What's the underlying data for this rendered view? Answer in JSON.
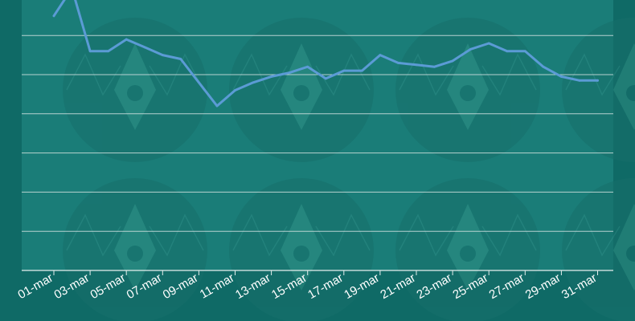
{
  "chart_data": {
    "type": "line",
    "title": "",
    "xlabel": "",
    "ylabel": "",
    "grid": true,
    "legend": "none",
    "x": [
      "01-mar",
      "02-mar",
      "03-mar",
      "04-mar",
      "05-mar",
      "06-mar",
      "07-mar",
      "08-mar",
      "09-mar",
      "10-mar",
      "11-mar",
      "12-mar",
      "13-mar",
      "14-mar",
      "15-mar",
      "16-mar",
      "17-mar",
      "18-mar",
      "19-mar",
      "20-mar",
      "21-mar",
      "22-mar",
      "23-mar",
      "24-mar",
      "25-mar",
      "26-mar",
      "27-mar",
      "28-mar",
      "29-mar",
      "30-mar",
      "31-mar"
    ],
    "tick_labels": [
      "01-mar",
      "03-mar",
      "05-mar",
      "07-mar",
      "09-mar",
      "11-mar",
      "13-mar",
      "15-mar",
      "17-mar",
      "19-mar",
      "21-mar",
      "23-mar",
      "25-mar",
      "27-mar",
      "29-mar",
      "31-mar"
    ],
    "series": [
      {
        "values": [
          6.5,
          7.2,
          5.6,
          5.6,
          5.9,
          5.7,
          5.5,
          5.4,
          4.8,
          4.2,
          4.6,
          4.8,
          4.95,
          5.05,
          5.2,
          4.9,
          5.1,
          5.1,
          5.5,
          5.3,
          5.25,
          5.2,
          5.35,
          5.65,
          5.8,
          5.6,
          5.6,
          5.2,
          4.95,
          4.85,
          4.85
        ],
        "color": "#5b9bd5"
      }
    ],
    "ylim": [
      0,
      8
    ],
    "gridlines": [
      1,
      2,
      3,
      4,
      5,
      6,
      7
    ],
    "colors": {
      "background": "#0f6a66",
      "plot_area": "#1a7d78",
      "watermark": "#176f6b",
      "grid": "#c8dcda",
      "axis": "#e6efee",
      "tick_text": "#ffffff",
      "line": "#5b9bd5"
    }
  }
}
